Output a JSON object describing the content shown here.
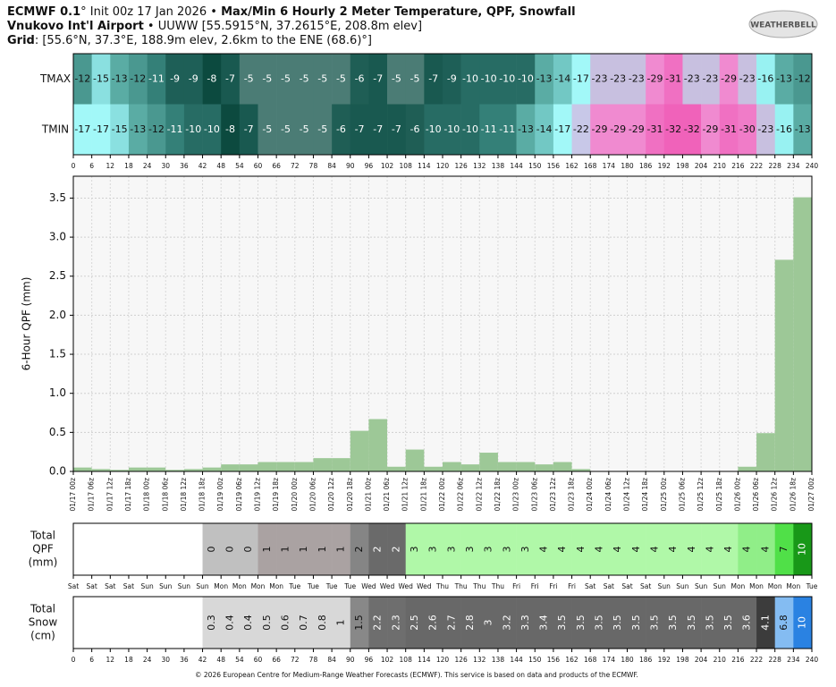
{
  "header": {
    "lines": [
      [
        {
          "text": "ECMWF 0.1",
          "bold": true
        },
        {
          "text": "° Init 00z 17 Jan 2026 • "
        },
        {
          "text": "Max/Min 6 Hourly 2 Meter Temperature,  QPF,  Snowfall",
          "bold": true
        }
      ],
      [
        {
          "text": "Vnukovo Int'l Airport",
          "bold": true
        },
        {
          "text": " • UUWW [55.5915°N, 37.2615°E, 208.8m elev]"
        }
      ],
      [
        {
          "text": "Grid",
          "bold": true
        },
        {
          "text": ": [55.6°N, 37.3°E, 188.9m elev, 2.6km to the ENE (68.6)°]"
        }
      ]
    ],
    "logo": "WEATHERBELL",
    "footer": "© 2026 European Centre for Medium-Range Weather Forecasts (ECMWF). This service is based on data and products of the ECMWF."
  },
  "chart_data": [
    {
      "type": "heatmap",
      "series": [
        {
          "name": "TMAX",
          "values": [
            -12,
            -15,
            -13,
            -12,
            -11,
            -9,
            -9,
            -8,
            -7,
            -5,
            -5,
            -5,
            -5,
            -5,
            -5,
            -6,
            -7,
            -5,
            -5,
            -7,
            -9,
            -10,
            -10,
            -10,
            -10,
            -13,
            -14,
            -17,
            -23,
            -23,
            -23,
            -29,
            -31,
            -23,
            -23,
            -29,
            -23,
            -16,
            -13,
            -12
          ]
        },
        {
          "name": "TMIN",
          "values": [
            -17,
            -17,
            -15,
            -13,
            -12,
            -11,
            -10,
            -10,
            -8,
            -7,
            -5,
            -5,
            -5,
            -5,
            -6,
            -7,
            -7,
            -7,
            -6,
            -10,
            -10,
            -10,
            -11,
            -11,
            -13,
            -14,
            -17,
            -22,
            -29,
            -29,
            -29,
            -31,
            -32,
            -32,
            -29,
            -31,
            -30,
            -23,
            -16,
            -13
          ]
        }
      ],
      "color_scale": [
        {
          "value": -5,
          "color": "#4b7c75"
        },
        {
          "value": -6,
          "color": "#1f5e55"
        },
        {
          "value": -7,
          "color": "#195950"
        },
        {
          "value": -8,
          "color": "#0c4a3f"
        },
        {
          "value": -9,
          "color": "#1e5f57"
        },
        {
          "value": -10,
          "color": "#276c64"
        },
        {
          "value": -11,
          "color": "#348078"
        },
        {
          "value": -12,
          "color": "#4a9890"
        },
        {
          "value": -13,
          "color": "#5aaca4"
        },
        {
          "value": -14,
          "color": "#72c8c4"
        },
        {
          "value": -15,
          "color": "#8ae0e0"
        },
        {
          "value": -16,
          "color": "#98f2f2"
        },
        {
          "value": -17,
          "color": "#a2f8f8"
        },
        {
          "value": -22,
          "color": "#c8c8e8"
        },
        {
          "value": -23,
          "color": "#c8c0e0"
        },
        {
          "value": -29,
          "color": "#f08ad0"
        },
        {
          "value": -30,
          "color": "#f07cc8"
        },
        {
          "value": -31,
          "color": "#f070c2"
        },
        {
          "value": -32,
          "color": "#f062ba"
        }
      ],
      "xlim": [
        0,
        240
      ],
      "xticks": [
        0,
        6,
        12,
        18,
        24,
        30,
        36,
        42,
        48,
        54,
        60,
        66,
        72,
        78,
        84,
        90,
        96,
        102,
        108,
        114,
        120,
        126,
        132,
        138,
        144,
        150,
        156,
        162,
        168,
        174,
        180,
        186,
        192,
        198,
        204,
        210,
        216,
        222,
        228,
        234,
        240
      ]
    },
    {
      "type": "histogram",
      "ylabel": "6-Hour QPF (mm)",
      "color": "#9dc897",
      "grid": true,
      "bins": [
        0,
        6,
        12,
        18,
        24,
        30,
        36,
        42,
        48,
        54,
        60,
        66,
        72,
        78,
        84,
        90,
        96,
        102,
        108,
        114,
        120,
        126,
        132,
        138,
        144,
        150,
        156,
        162,
        168,
        174,
        180,
        186,
        192,
        198,
        204,
        210,
        216,
        222,
        228,
        234,
        240
      ],
      "values": [
        0.05,
        0.03,
        0.02,
        0.05,
        0.05,
        0.02,
        0.03,
        0.05,
        0.09,
        0.09,
        0.12,
        0.12,
        0.12,
        0.17,
        0.17,
        0.52,
        0.67,
        0.06,
        0.28,
        0.06,
        0.12,
        0.09,
        0.24,
        0.12,
        0.12,
        0.09,
        0.12,
        0.03,
        0,
        0,
        0,
        0,
        0,
        0,
        0,
        0,
        0.06,
        0.49,
        2.71,
        3.51
      ],
      "xlim": [
        0,
        240
      ],
      "ylim": [
        0,
        3.78
      ],
      "yticks": [
        {
          "value": 0,
          "label": "0.0"
        },
        0.5,
        {
          "value": 1,
          "label": "1.0"
        },
        1.5,
        {
          "value": 2,
          "label": "2.0"
        },
        2.5,
        {
          "value": 3,
          "label": "3.0"
        },
        3.5
      ],
      "xticks": [
        {
          "value": 0,
          "label": "01/17 00z"
        },
        {
          "value": 6,
          "label": "01/17 06z"
        },
        {
          "value": 12,
          "label": "01/17 12z"
        },
        {
          "value": 18,
          "label": "01/17 18z"
        },
        {
          "value": 24,
          "label": "01/18 00z"
        },
        {
          "value": 30,
          "label": "01/18 06z"
        },
        {
          "value": 36,
          "label": "01/18 12z"
        },
        {
          "value": 42,
          "label": "01/18 18z"
        },
        {
          "value": 48,
          "label": "01/19 00z"
        },
        {
          "value": 54,
          "label": "01/19 06z"
        },
        {
          "value": 60,
          "label": "01/19 12z"
        },
        {
          "value": 66,
          "label": "01/19 18z"
        },
        {
          "value": 72,
          "label": "01/20 00z"
        },
        {
          "value": 78,
          "label": "01/20 06z"
        },
        {
          "value": 84,
          "label": "01/20 12z"
        },
        {
          "value": 90,
          "label": "01/20 18z"
        },
        {
          "value": 96,
          "label": "01/21 00z"
        },
        {
          "value": 102,
          "label": "01/21 06z"
        },
        {
          "value": 108,
          "label": "01/21 12z"
        },
        {
          "value": 114,
          "label": "01/21 18z"
        },
        {
          "value": 120,
          "label": "01/22 00z"
        },
        {
          "value": 126,
          "label": "01/22 06z"
        },
        {
          "value": 132,
          "label": "01/22 12z"
        },
        {
          "value": 138,
          "label": "01/22 18z"
        },
        {
          "value": 144,
          "label": "01/23 00z"
        },
        {
          "value": 150,
          "label": "01/23 06z"
        },
        {
          "value": 156,
          "label": "01/23 12z"
        },
        {
          "value": 162,
          "label": "01/23 18z"
        },
        {
          "value": 168,
          "label": "01/24 00z"
        },
        {
          "value": 174,
          "label": "01/24 06z"
        },
        {
          "value": 180,
          "label": "01/24 12z"
        },
        {
          "value": 186,
          "label": "01/24 18z"
        },
        {
          "value": 192,
          "label": "01/25 00z"
        },
        {
          "value": 198,
          "label": "01/25 06z"
        },
        {
          "value": 204,
          "label": "01/25 12z"
        },
        {
          "value": 210,
          "label": "01/25 18z"
        },
        {
          "value": 216,
          "label": "01/26 00z"
        },
        {
          "value": 222,
          "label": "01/26 06z"
        },
        {
          "value": 228,
          "label": "01/26 12z"
        },
        {
          "value": 234,
          "label": "01/26 18z"
        },
        {
          "value": 240,
          "label": "01/27 00z"
        }
      ]
    },
    {
      "type": "strip",
      "ylabel": [
        "Total",
        "QPF",
        "(mm)"
      ],
      "values": [
        null,
        null,
        null,
        null,
        null,
        null,
        null,
        0,
        0,
        0,
        1,
        1,
        1,
        1,
        1,
        2,
        2,
        2,
        3,
        3,
        3,
        3,
        3,
        3,
        3,
        4,
        4,
        4,
        4,
        4,
        4,
        4,
        4,
        4,
        4,
        4,
        4,
        4,
        7,
        10
      ],
      "colors": [
        null,
        null,
        null,
        null,
        null,
        null,
        null,
        "#c0c0c0",
        "#c0c0c0",
        "#c0c0c0",
        "#aaa2a2",
        "#aaa2a2",
        "#aaa2a2",
        "#aaa2a2",
        "#aaa2a2",
        "#858585",
        "#6a6a6a",
        "#6a6a6a",
        "#b0f8a8",
        "#b0f8a8",
        "#b0f8a8",
        "#b0f8a8",
        "#b0f8a8",
        "#b0f8a8",
        "#b0f8a8",
        "#b0f8a8",
        "#b0f8a8",
        "#b0f8a8",
        "#b0f8a8",
        "#b0f8a8",
        "#b0f8a8",
        "#b0f8a8",
        "#b0f8a8",
        "#b0f8a8",
        "#b0f8a8",
        "#b0f8a8",
        "#90ee88",
        "#90ee88",
        "#50e048",
        "#189818"
      ],
      "xlim": [
        0,
        240
      ],
      "xticks": [
        {
          "value": 0,
          "label": "Sat"
        },
        {
          "value": 6,
          "label": "Sat"
        },
        {
          "value": 12,
          "label": "Sat"
        },
        {
          "value": 18,
          "label": "Sat"
        },
        {
          "value": 24,
          "label": "Sun"
        },
        {
          "value": 30,
          "label": "Sun"
        },
        {
          "value": 36,
          "label": "Sun"
        },
        {
          "value": 42,
          "label": "Sun"
        },
        {
          "value": 48,
          "label": "Mon"
        },
        {
          "value": 54,
          "label": "Mon"
        },
        {
          "value": 60,
          "label": "Mon"
        },
        {
          "value": 66,
          "label": "Mon"
        },
        {
          "value": 72,
          "label": "Tue"
        },
        {
          "value": 78,
          "label": "Tue"
        },
        {
          "value": 84,
          "label": "Tue"
        },
        {
          "value": 90,
          "label": "Tue"
        },
        {
          "value": 96,
          "label": "Wed"
        },
        {
          "value": 102,
          "label": "Wed"
        },
        {
          "value": 108,
          "label": "Wed"
        },
        {
          "value": 114,
          "label": "Wed"
        },
        {
          "value": 120,
          "label": "Thu"
        },
        {
          "value": 126,
          "label": "Thu"
        },
        {
          "value": 132,
          "label": "Thu"
        },
        {
          "value": 138,
          "label": "Thu"
        },
        {
          "value": 144,
          "label": "Fri"
        },
        {
          "value": 150,
          "label": "Fri"
        },
        {
          "value": 156,
          "label": "Fri"
        },
        {
          "value": 162,
          "label": "Fri"
        },
        {
          "value": 168,
          "label": "Sat"
        },
        {
          "value": 174,
          "label": "Sat"
        },
        {
          "value": 180,
          "label": "Sat"
        },
        {
          "value": 186,
          "label": "Sat"
        },
        {
          "value": 192,
          "label": "Sun"
        },
        {
          "value": 198,
          "label": "Sun"
        },
        {
          "value": 204,
          "label": "Sun"
        },
        {
          "value": 210,
          "label": "Sun"
        },
        {
          "value": 216,
          "label": "Mon"
        },
        {
          "value": 222,
          "label": "Mon"
        },
        {
          "value": 228,
          "label": "Mon"
        },
        {
          "value": 234,
          "label": "Mon"
        },
        {
          "value": 240,
          "label": "Tue"
        }
      ]
    },
    {
      "type": "strip",
      "ylabel": [
        "Total",
        "Snow",
        "(cm)"
      ],
      "values": [
        null,
        null,
        null,
        null,
        null,
        null,
        null,
        0.3,
        0.4,
        0.4,
        0.5,
        0.6,
        0.7,
        0.8,
        1,
        1.5,
        2.2,
        2.3,
        2.5,
        2.6,
        2.7,
        2.8,
        3,
        3.2,
        3.3,
        3.4,
        3.5,
        3.5,
        3.5,
        3.5,
        3.5,
        3.5,
        3.5,
        3.5,
        3.5,
        3.5,
        3.6,
        4.1,
        6.8,
        10
      ],
      "colors": [
        null,
        null,
        null,
        null,
        null,
        null,
        null,
        "#d8d8d8",
        "#d8d8d8",
        "#d8d8d8",
        "#d8d8d8",
        "#d8d8d8",
        "#d8d8d8",
        "#d8d8d8",
        "#d8d8d8",
        "#888888",
        "#6e6e6e",
        "#6e6e6e",
        "#686868",
        "#686868",
        "#686868",
        "#686868",
        "#686868",
        "#686868",
        "#686868",
        "#686868",
        "#686868",
        "#686868",
        "#686868",
        "#686868",
        "#686868",
        "#686868",
        "#686868",
        "#686868",
        "#686868",
        "#686868",
        "#686868",
        "#3c3c3c",
        "#84bcf2",
        "#2a82e2"
      ],
      "xlim": [
        0,
        240
      ],
      "xticks": [
        0,
        6,
        12,
        18,
        24,
        30,
        36,
        42,
        48,
        54,
        60,
        66,
        72,
        78,
        84,
        90,
        96,
        102,
        108,
        114,
        120,
        126,
        132,
        138,
        144,
        150,
        156,
        162,
        168,
        174,
        180,
        186,
        192,
        198,
        204,
        210,
        216,
        222,
        228,
        234,
        240
      ]
    }
  ]
}
